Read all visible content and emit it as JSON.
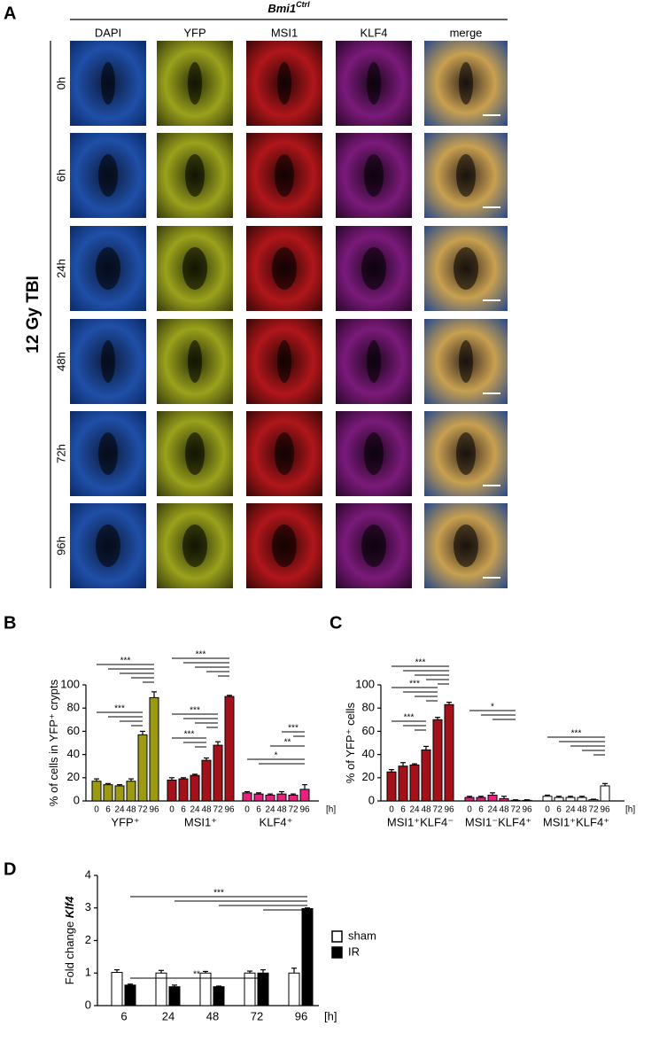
{
  "panel_letters": [
    "A",
    "B",
    "C",
    "D"
  ],
  "image_grid": {
    "header": "Bmi1",
    "header_sup": "Ctrl",
    "side_label": "12 Gy TBI",
    "columns": [
      "DAPI",
      "YFP",
      "MSI1",
      "KLF4",
      "merge"
    ],
    "rows": [
      "0h",
      "6h",
      "24h",
      "48h",
      "72h",
      "96h"
    ]
  },
  "chart_data": [
    {
      "type": "bar",
      "ylabel": "% of cells in YFP⁺ crypts",
      "categories": [
        "0",
        "6",
        "24",
        "48",
        "72",
        "96"
      ],
      "x_unit": "[h]",
      "series": [
        {
          "name": "YFP⁺",
          "color": "#9c9a12",
          "values": [
            17,
            14,
            13,
            17,
            57,
            89
          ],
          "errors": [
            2,
            1,
            1,
            2,
            3,
            5
          ]
        },
        {
          "name": "MSI1⁺",
          "color": "#a3121a",
          "values": [
            18,
            19,
            22,
            35,
            48,
            90
          ],
          "errors": [
            2,
            1,
            1,
            2,
            3,
            1
          ]
        },
        {
          "name": "KLF4⁺",
          "color": "#e3237d",
          "values": [
            7,
            6,
            5,
            6,
            5,
            10
          ],
          "errors": [
            1,
            1,
            1,
            2,
            1,
            4
          ]
        }
      ],
      "ylim": [
        0,
        100
      ],
      "yticks": [
        0,
        20,
        40,
        60,
        80,
        100
      ],
      "annotations": [
        "***",
        "***",
        "***",
        "***",
        "***",
        "***",
        "**",
        "*"
      ]
    },
    {
      "type": "bar",
      "ylabel": "% of YFP⁺ cells",
      "categories": [
        "0",
        "6",
        "24",
        "48",
        "72",
        "96"
      ],
      "x_unit": "[h]",
      "series": [
        {
          "name": "MSI1⁺KLF4⁻",
          "color": "#a3121a",
          "values": [
            25,
            30,
            31,
            44,
            70,
            83
          ],
          "errors": [
            2,
            3,
            1,
            3,
            2,
            2
          ]
        },
        {
          "name": "MSI1⁻KLF4⁺",
          "color": "#e3237d",
          "values": [
            3,
            3,
            5,
            2,
            0.5,
            0.5
          ],
          "errors": [
            1,
            1,
            2,
            2,
            0.5,
            0.5
          ]
        },
        {
          "name": "MSI1⁺KLF4⁺",
          "color": "#ffffff",
          "values": [
            4,
            3,
            3,
            3,
            1,
            13
          ],
          "errors": [
            1,
            1,
            1,
            1,
            0.5,
            2
          ]
        }
      ],
      "ylim": [
        0,
        100
      ],
      "yticks": [
        0,
        20,
        40,
        60,
        80,
        100
      ],
      "annotations": [
        "***",
        "***",
        "***",
        "*",
        "***"
      ]
    },
    {
      "type": "bar",
      "ylabel": "Fold change",
      "ylabel_gene": "Klf4",
      "categories": [
        "6",
        "24",
        "48",
        "72",
        "96"
      ],
      "x_unit": "[h]",
      "series": [
        {
          "name": "sham",
          "color": "#ffffff",
          "values": [
            1.02,
            1.0,
            1.0,
            1.0,
            1.0
          ],
          "errors": [
            0.08,
            0.08,
            0.05,
            0.06,
            0.15
          ]
        },
        {
          "name": "IR",
          "color": "#000000",
          "values": [
            0.63,
            0.58,
            0.58,
            1.0,
            2.98
          ],
          "errors": [
            0.03,
            0.05,
            0.02,
            0.1,
            0.02
          ]
        }
      ],
      "ylim": [
        0,
        4
      ],
      "yticks": [
        0,
        1,
        2,
        3,
        4
      ],
      "legend": "right",
      "annotations": [
        "***",
        "**"
      ]
    }
  ]
}
